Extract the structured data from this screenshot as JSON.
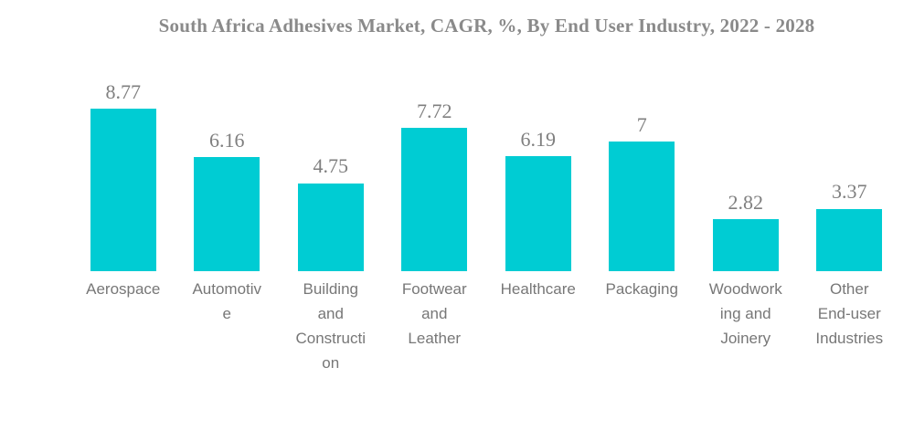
{
  "chart_data": {
    "type": "bar",
    "title": "South Africa Adhesives Market, CAGR, %, By End User Industry, 2022 - 2028",
    "xlabel": "",
    "ylabel": "",
    "ylim": [
      0,
      9
    ],
    "grid": false,
    "legend": "none",
    "categories": [
      "Aerospace",
      "Automotive",
      "Building and Construction",
      "Footwear and Leather",
      "Healthcare",
      "Packaging",
      "Woodworking and Joinery",
      "Other End-user Industries"
    ],
    "category_label_lines": [
      [
        "Aerospace"
      ],
      [
        "Automotiv",
        "e"
      ],
      [
        "Building",
        "and",
        "Constructi",
        "on"
      ],
      [
        "Footwear",
        "and",
        "Leather"
      ],
      [
        "Healthcare"
      ],
      [
        "Packaging"
      ],
      [
        "Woodwork",
        "ing and",
        "Joinery"
      ],
      [
        "Other",
        "End-user",
        "Industries"
      ]
    ],
    "values": [
      8.77,
      6.16,
      4.75,
      7.72,
      6.19,
      7,
      2.82,
      3.37
    ],
    "value_labels": [
      "8.77",
      "6.16",
      "4.75",
      "7.72",
      "6.19",
      "7",
      "2.82",
      "3.37"
    ]
  },
  "colors": {
    "bar": "#00CCD3",
    "title_text": "#8A8A8A",
    "value_text": "#7F7F7F",
    "category_text": "#777777",
    "background": "#FFFFFF"
  }
}
